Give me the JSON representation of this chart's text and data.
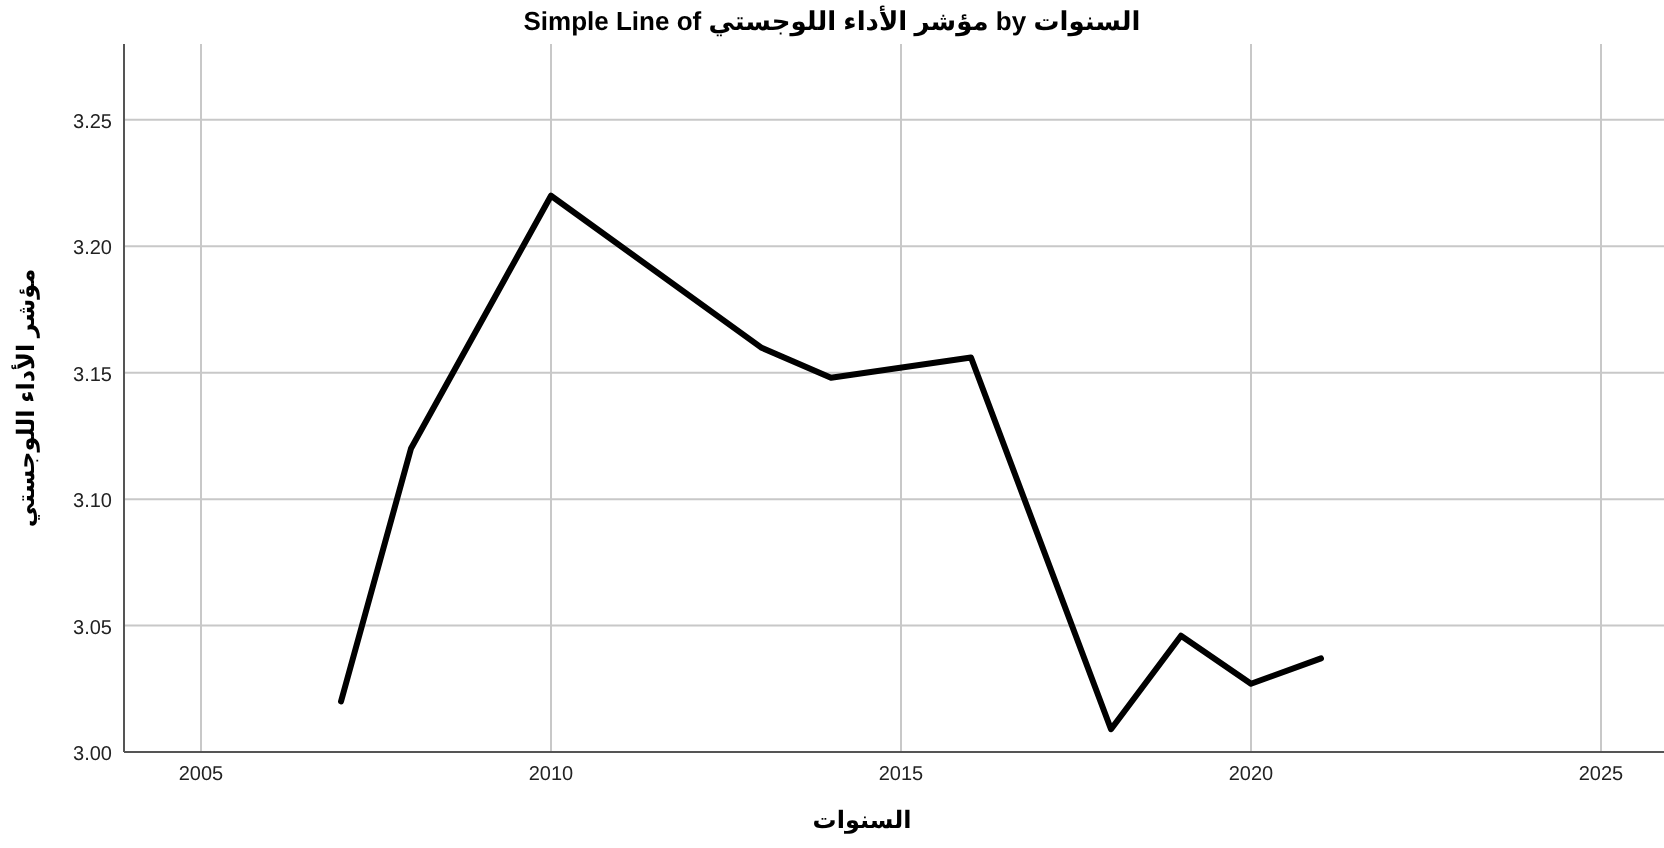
{
  "chart_data": {
    "type": "line",
    "title": "Simple Line of مؤشر الأداء اللوجستي by السنوات",
    "xlabel": "السنوات",
    "ylabel": "مؤشر الأداء اللوجستي",
    "x": [
      2007,
      2008,
      2010,
      2013,
      2014,
      2016,
      2018,
      2019,
      2020,
      2021
    ],
    "series": [
      {
        "color": "#000000",
        "values": [
          3.02,
          3.12,
          3.22,
          3.16,
          3.148,
          3.156,
          3.009,
          3.046,
          3.027,
          3.037
        ]
      }
    ],
    "xlim": [
      2003.9,
      2025.9
    ],
    "xticks": [
      2005,
      2010,
      2015,
      2020,
      2025
    ],
    "ylim": [
      3.0,
      3.28
    ],
    "yticks": [
      {
        "value": 3.0,
        "label": "3.00"
      },
      {
        "value": 3.05,
        "label": "3.05"
      },
      {
        "value": 3.1,
        "label": "3.10"
      },
      {
        "value": 3.15,
        "label": "3.15"
      },
      {
        "value": 3.2,
        "label": "3.20"
      },
      {
        "value": 3.25,
        "label": "3.25"
      }
    ],
    "grid": true,
    "marker": "none",
    "line_style": "solid"
  }
}
